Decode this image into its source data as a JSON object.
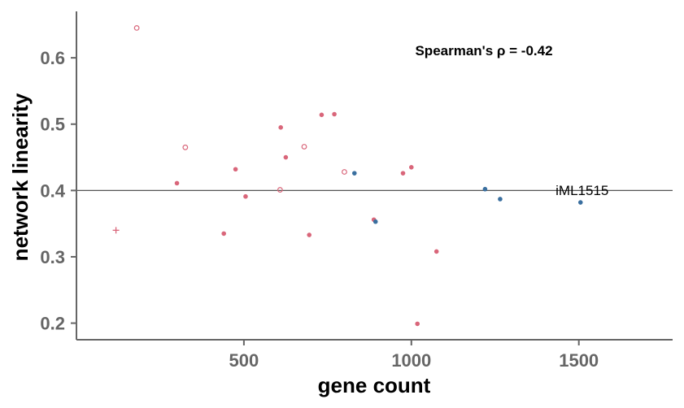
{
  "chart_data": {
    "type": "scatter",
    "xlabel": "gene count",
    "ylabel": "network linearity",
    "xlim": [
      0,
      1780
    ],
    "ylim": [
      0.175,
      0.67
    ],
    "x_ticks": [
      500,
      1000,
      1500
    ],
    "y_ticks": [
      0.2,
      0.3,
      0.4,
      0.5,
      0.6
    ],
    "reference_line_y": 0.4,
    "annotation": "Spearman's ρ = -0.42",
    "colors": {
      "pink": "#d9667a",
      "blue": "#3a6f9f",
      "axis": "#666666"
    },
    "points": [
      {
        "x": 180,
        "y": 0.645,
        "color": "pink",
        "shape": "open-circle"
      },
      {
        "x": 325,
        "y": 0.465,
        "color": "pink",
        "shape": "open-circle"
      },
      {
        "x": 300,
        "y": 0.411,
        "color": "pink",
        "shape": "filled"
      },
      {
        "x": 118,
        "y": 0.34,
        "color": "pink",
        "shape": "plus"
      },
      {
        "x": 440,
        "y": 0.335,
        "color": "pink",
        "shape": "filled"
      },
      {
        "x": 475,
        "y": 0.432,
        "color": "pink",
        "shape": "filled"
      },
      {
        "x": 505,
        "y": 0.391,
        "color": "pink",
        "shape": "filled"
      },
      {
        "x": 610,
        "y": 0.495,
        "color": "pink",
        "shape": "filled"
      },
      {
        "x": 625,
        "y": 0.45,
        "color": "pink",
        "shape": "filled"
      },
      {
        "x": 608,
        "y": 0.401,
        "color": "pink",
        "shape": "open-circle"
      },
      {
        "x": 680,
        "y": 0.466,
        "color": "pink",
        "shape": "open-circle"
      },
      {
        "x": 695,
        "y": 0.333,
        "color": "pink",
        "shape": "filled"
      },
      {
        "x": 732,
        "y": 0.514,
        "color": "pink",
        "shape": "filled"
      },
      {
        "x": 770,
        "y": 0.515,
        "color": "pink",
        "shape": "filled"
      },
      {
        "x": 800,
        "y": 0.428,
        "color": "pink",
        "shape": "open-circle"
      },
      {
        "x": 830,
        "y": 0.426,
        "color": "blue",
        "shape": "filled"
      },
      {
        "x": 888,
        "y": 0.356,
        "color": "pink",
        "shape": "filled"
      },
      {
        "x": 893,
        "y": 0.353,
        "color": "blue",
        "shape": "filled"
      },
      {
        "x": 975,
        "y": 0.426,
        "color": "pink",
        "shape": "filled"
      },
      {
        "x": 1000,
        "y": 0.435,
        "color": "pink",
        "shape": "filled"
      },
      {
        "x": 1018,
        "y": 0.199,
        "color": "pink",
        "shape": "filled"
      },
      {
        "x": 1075,
        "y": 0.308,
        "color": "pink",
        "shape": "filled"
      },
      {
        "x": 1220,
        "y": 0.402,
        "color": "blue",
        "shape": "filled"
      },
      {
        "x": 1265,
        "y": 0.387,
        "color": "blue",
        "shape": "filled"
      },
      {
        "x": 1505,
        "y": 0.382,
        "color": "blue",
        "shape": "filled",
        "label": "iML1515"
      }
    ]
  }
}
